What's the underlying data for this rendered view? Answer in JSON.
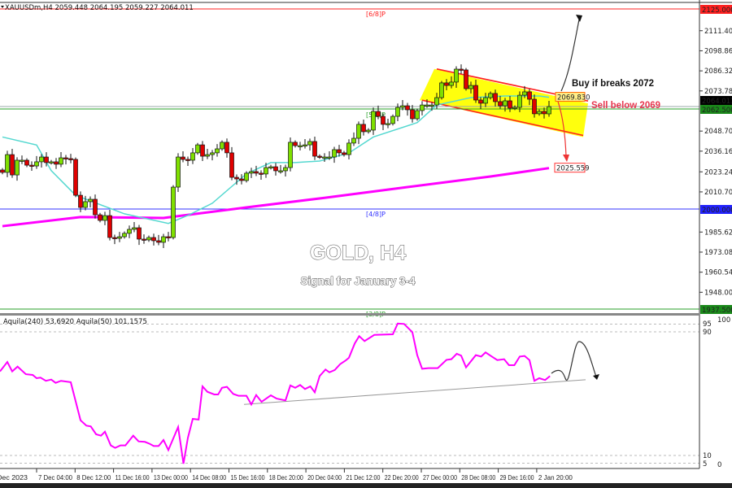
{
  "header": {
    "title": "XAUUSDm,H4  2059.448 2064.195 2059.227 2064.011"
  },
  "overlay": {
    "title": "GOLD, H4",
    "subtitle": "Signal for January 3-4"
  },
  "annotations": {
    "buy": "Buy if breaks 2072",
    "sell": "Sell below 2069",
    "ma_fast_label": "2069.830",
    "ma_slow_label": "2025.559"
  },
  "colors": {
    "bull": "#7fe000",
    "bear": "#e00000",
    "ma_fast": "#55d8d0",
    "ma_slow": "#ff00ff",
    "channel_fill": "#ffff00",
    "channel_line": "#ff2020",
    "indicator": "#ff00ff"
  },
  "chart_data": [
    {
      "type": "candlestick",
      "symbol": "XAUUSDm",
      "timeframe": "H4",
      "ylim": [
        1935.46,
        2125.0
      ],
      "y_ticks": [
        "2111.400",
        "2098.860",
        "2086.320",
        "2073.780",
        "2048.700",
        "2036.160",
        "2023.240",
        "2010.700",
        "1985.620",
        "1973.080",
        "1960.540",
        "1948.000"
      ],
      "x_ticks": [
        "Dec 2023",
        "7 Dec 04:00",
        "8 Dec 12:00",
        "11 Dec 16:00",
        "13 Dec 00:00",
        "14 Dec 08:00",
        "15 Dec 16:00",
        "18 Dec 20:00",
        "20 Dec 04:00",
        "21 Dec 12:00",
        "22 Dec 20:00",
        "27 Dec 00:00",
        "28 Dec 08:00",
        "29 Dec 16:00",
        "2 Jan 20:00"
      ],
      "closes": [
        2022.9,
        2034.0,
        2021.3,
        2030.5,
        2030.5,
        2027.4,
        2026.9,
        2029.5,
        2032.5,
        2029.0,
        2029.5,
        2028.0,
        2032.0,
        2031.5,
        2031.0,
        2008.6,
        2001.0,
        2004.6,
        2006.1,
        1996.4,
        1992.9,
        1995.9,
        1982.2,
        1981.7,
        1982.7,
        1984.8,
        1987.3,
        1988.3,
        1981.2,
        1980.7,
        1982.2,
        1980.2,
        1979.2,
        1982.7,
        1982.2,
        2013.7,
        2032.5,
        2031.0,
        2030.5,
        2035.1,
        2040.1,
        2033.0,
        2034.0,
        2035.1,
        2037.6,
        2041.7,
        2035.1,
        2019.8,
        2018.8,
        2017.8,
        2022.4,
        2023.4,
        2022.4,
        2021.9,
        2025.9,
        2026.4,
        2023.9,
        2023.9,
        2025.9,
        2041.7,
        2039.6,
        2039.6,
        2040.1,
        2042.2,
        2033.0,
        2032.5,
        2032.5,
        2032.5,
        2037.1,
        2035.1,
        2034.0,
        2041.2,
        2044.2,
        2052.9,
        2048.3,
        2049.3,
        2061.0,
        2057.9,
        2052.9,
        2053.4,
        2057.9,
        2063.5,
        2064.5,
        2062.0,
        2056.4,
        2061.5,
        2065.0,
        2065.0,
        2065.0,
        2069.6,
        2078.8,
        2077.2,
        2079.3,
        2087.4,
        2086.9,
        2075.2,
        2077.2,
        2068.1,
        2066.1,
        2069.6,
        2072.2,
        2067.1,
        2064.5,
        2067.6,
        2063.0,
        2063.5,
        2071.1,
        2073.2,
        2068.6,
        2059.5,
        2061.0,
        2059.5,
        2064.0
      ],
      "last": {
        "open": 2059.448,
        "high": 2064.195,
        "low": 2059.227,
        "close": 2064.011
      },
      "ma_fast": [
        [
          0,
          2045
        ],
        [
          7,
          2040
        ],
        [
          10,
          2024
        ],
        [
          15,
          2008.6
        ],
        [
          25,
          1997
        ],
        [
          34,
          1991
        ],
        [
          38,
          1996
        ],
        [
          43,
          2003.6
        ],
        [
          50,
          2022
        ],
        [
          55,
          2029
        ],
        [
          60,
          2029
        ],
        [
          65,
          2030
        ],
        [
          71,
          2035
        ],
        [
          76,
          2045
        ],
        [
          85,
          2054
        ],
        [
          89,
          2065
        ],
        [
          96,
          2069.6
        ],
        [
          103,
          2070.6
        ],
        [
          110,
          2070.6
        ],
        [
          112,
          2069.83
        ]
      ],
      "ma_slow": [
        [
          0,
          1989.3
        ],
        [
          16,
          1995
        ],
        [
          33,
          1994.4
        ],
        [
          50,
          2001
        ],
        [
          66,
          2007
        ],
        [
          83,
          2013.7
        ],
        [
          100,
          2020.3
        ],
        [
          112,
          2025.559
        ]
      ],
      "levels": [
        {
          "label": "[6/8]P",
          "value": 2125.0,
          "color": "#ff2020"
        },
        {
          "label": "[5/8]P",
          "value": 2062.5,
          "color": "#2aa02a"
        },
        {
          "label": "[4/8]P",
          "value": 2000.0,
          "color": "#3333ff"
        },
        {
          "label": "[3/8]P",
          "value": 1937.5,
          "color": "#2aa02a"
        }
      ],
      "current_price": "2064.011",
      "level_tags": [
        "2125.000",
        "2062.500",
        "2000.000",
        "1937.500"
      ],
      "channel": {
        "upper": [
          [
            89,
            2087.5
          ],
          [
            120,
            2067.5
          ]
        ],
        "lower": [
          [
            86,
            2068
          ],
          [
            119,
            2046
          ]
        ]
      }
    },
    {
      "type": "line",
      "legend": "Aquila(240) 53.6920  Aquila(50) 101.1575",
      "ylim": [
        0,
        100
      ],
      "y_ticks": [
        "100",
        "95",
        "90",
        "10",
        "5",
        "0"
      ],
      "dashed_levels": [
        95,
        90,
        10,
        5
      ],
      "series": [
        [
          -0.5,
          64.4
        ],
        [
          1,
          70.5
        ],
        [
          2,
          64.4
        ],
        [
          3.1,
          67.5
        ],
        [
          4.8,
          62.6
        ],
        [
          6.2,
          62.1
        ],
        [
          7,
          60
        ],
        [
          7.8,
          60.4
        ],
        [
          8.9,
          58.3
        ],
        [
          10,
          59.1
        ],
        [
          10.9,
          57
        ],
        [
          12,
          58.3
        ],
        [
          14,
          57.4
        ],
        [
          16,
          32.8
        ],
        [
          17.2,
          29.3
        ],
        [
          18.1,
          28.8
        ],
        [
          19.2,
          23.7
        ],
        [
          20.2,
          22.8
        ],
        [
          21,
          25.4
        ],
        [
          22.2,
          16.5
        ],
        [
          23.1,
          14.9
        ],
        [
          24.2,
          16.5
        ],
        [
          25.2,
          16.5
        ],
        [
          26.8,
          22.8
        ],
        [
          27.9,
          19.1
        ],
        [
          29.2,
          18.8
        ],
        [
          30.2,
          17.5
        ],
        [
          31,
          16.1
        ],
        [
          32,
          16.1
        ],
        [
          33,
          20
        ],
        [
          34,
          13.5
        ],
        [
          36,
          28.4
        ],
        [
          37.1,
          4.7
        ],
        [
          38,
          21.4
        ],
        [
          39,
          33.7
        ],
        [
          40.2,
          33.2
        ],
        [
          41,
          54.7
        ],
        [
          42,
          51.2
        ],
        [
          43.4,
          49.5
        ],
        [
          44.2,
          49.5
        ],
        [
          45,
          53.8
        ],
        [
          46,
          54.4
        ],
        [
          47.3,
          49.8
        ],
        [
          48.4,
          48.6
        ],
        [
          50,
          48.6
        ],
        [
          51,
          43
        ],
        [
          52,
          49.1
        ],
        [
          53.1,
          44.7
        ],
        [
          55,
          48.9
        ],
        [
          56.2,
          46.8
        ],
        [
          58,
          45.6
        ],
        [
          59,
          55.3
        ],
        [
          60,
          53.8
        ],
        [
          61,
          55.6
        ],
        [
          62,
          53
        ],
        [
          63.1,
          54.7
        ],
        [
          64,
          50.9
        ],
        [
          65,
          61.4
        ],
        [
          66.2,
          65.6
        ],
        [
          67,
          63.8
        ],
        [
          68.1,
          65.3
        ],
        [
          69.2,
          69.1
        ],
        [
          70.3,
          71.4
        ],
        [
          71,
          73.2
        ],
        [
          72.2,
          82.5
        ],
        [
          73.1,
          87.2
        ],
        [
          74.2,
          84
        ],
        [
          76.2,
          88
        ],
        [
          80,
          88.4
        ],
        [
          81,
          95.4
        ],
        [
          82.3,
          95.1
        ],
        [
          84,
          89.8
        ],
        [
          85,
          74.9
        ],
        [
          86,
          66.1
        ],
        [
          87.3,
          66.5
        ],
        [
          89.2,
          66.5
        ],
        [
          91,
          71.9
        ],
        [
          92,
          72.3
        ],
        [
          93.1,
          75.8
        ],
        [
          94,
          74.6
        ],
        [
          95,
          67
        ],
        [
          97,
          74.9
        ],
        [
          98.1,
          74
        ],
        [
          99,
          76.7
        ],
        [
          100.3,
          74
        ],
        [
          101.4,
          71.7
        ],
        [
          102.8,
          72.3
        ],
        [
          103.8,
          68.4
        ],
        [
          104.9,
          68.4
        ],
        [
          106,
          74
        ],
        [
          107,
          74.4
        ],
        [
          108,
          71.7
        ],
        [
          109,
          58.3
        ],
        [
          110,
          60
        ],
        [
          111.2,
          58.8
        ],
        [
          112.2,
          61.4
        ]
      ],
      "trendline": [
        [
          49.5,
          43
        ],
        [
          119.5,
          59
        ]
      ]
    }
  ]
}
